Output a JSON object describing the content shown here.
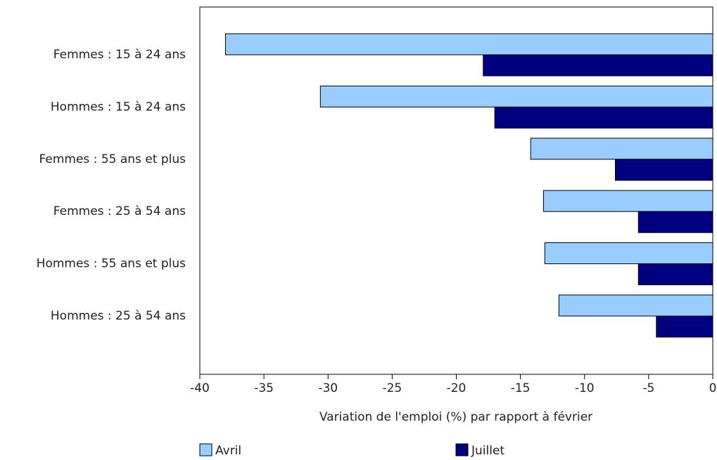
{
  "chart_data": {
    "type": "hbar",
    "categories": [
      "Femmes : 15 à 24 ans",
      "Hommes : 15 à 24 ans",
      "Femmes : 55 ans et plus",
      "Femmes : 25 à 54 ans",
      "Hommes : 55 ans et plus",
      "Hommes : 25 à 54 ans"
    ],
    "series": [
      {
        "name": "Avril",
        "color": "#99ccff",
        "values": [
          -38.0,
          -30.6,
          -14.2,
          -13.2,
          -13.1,
          -12.0
        ]
      },
      {
        "name": "Juillet",
        "color": "#000080",
        "values": [
          -17.9,
          -17.0,
          -7.6,
          -5.8,
          -5.8,
          -4.4
        ]
      }
    ],
    "x_label": "Variation de l'emploi (%) par rapport à février",
    "xlim": [
      -40,
      0
    ],
    "xticks": [
      -40,
      -35,
      -30,
      -25,
      -20,
      -15,
      -10,
      -5,
      0
    ],
    "legend": "bottom"
  }
}
